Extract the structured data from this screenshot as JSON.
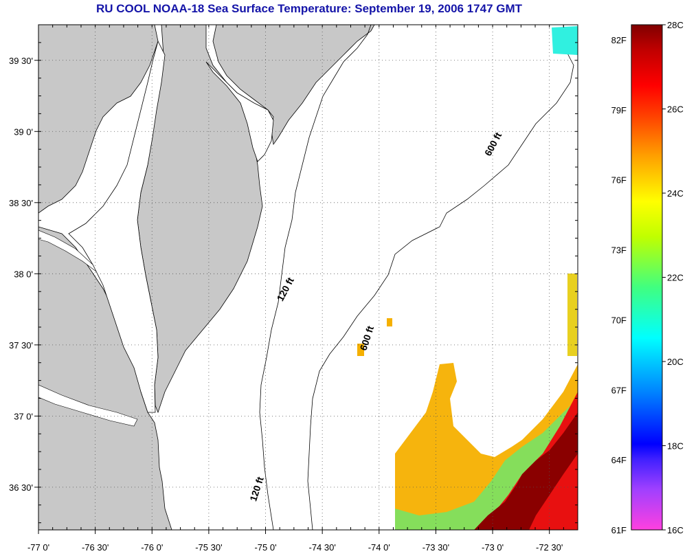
{
  "title": "RU COOL  NOAA-18  Sea Surface Temperature:  September 19, 2006 1747 GMT",
  "map": {
    "lon_range": [
      -77.0,
      -72.25
    ],
    "lat_range": [
      36.2,
      39.75
    ],
    "x_ticks": [
      {
        "value": -77.0,
        "label": "-77 0'"
      },
      {
        "value": -76.5,
        "label": "-76 30'"
      },
      {
        "value": -76.0,
        "label": "-76 0'"
      },
      {
        "value": -75.5,
        "label": "-75 30'"
      },
      {
        "value": -75.0,
        "label": "-75 0'"
      },
      {
        "value": -74.5,
        "label": "-74 30'"
      },
      {
        "value": -74.0,
        "label": "-74 0'"
      },
      {
        "value": -73.5,
        "label": "-73 30'"
      },
      {
        "value": -73.0,
        "label": "-73 0'"
      },
      {
        "value": -72.5,
        "label": "-72 30'"
      }
    ],
    "y_ticks": [
      {
        "value": 39.5,
        "label": "39 30'"
      },
      {
        "value": 39.0,
        "label": "39 0'"
      },
      {
        "value": 38.5,
        "label": "38 30'"
      },
      {
        "value": 38.0,
        "label": "38 0'"
      },
      {
        "value": 37.5,
        "label": "37 30'"
      },
      {
        "value": 37.0,
        "label": "37 0'"
      },
      {
        "value": 36.5,
        "label": "36 30'"
      }
    ],
    "contour_labels": [
      {
        "text": "600 ft",
        "lon": -72.97,
        "lat": 38.9,
        "angle": -62
      },
      {
        "text": "600 ft",
        "lon": -74.08,
        "lat": 37.54,
        "angle": -72
      },
      {
        "text": "120 ft",
        "lon": -74.8,
        "lat": 37.88,
        "angle": -62
      },
      {
        "text": "120 ft",
        "lon": -75.05,
        "lat": 36.48,
        "angle": -72
      }
    ],
    "land_color": "#c8c8c8",
    "grid": true
  },
  "colorbar": {
    "left_labels": [
      "82F",
      "79F",
      "76F",
      "73F",
      "70F",
      "67F",
      "64F",
      "61F"
    ],
    "right_labels": [
      "28C",
      "26C",
      "24C",
      "22C",
      "20C",
      "18C",
      "16C"
    ],
    "range_c": [
      16,
      28
    ],
    "colors": [
      "#ff40e0",
      "#a040ff",
      "#0000ff",
      "#0080ff",
      "#00ffff",
      "#40ff80",
      "#c0ff00",
      "#ffff00",
      "#ffa000",
      "#ff4000",
      "#ff0000",
      "#e00000",
      "#800000"
    ]
  }
}
